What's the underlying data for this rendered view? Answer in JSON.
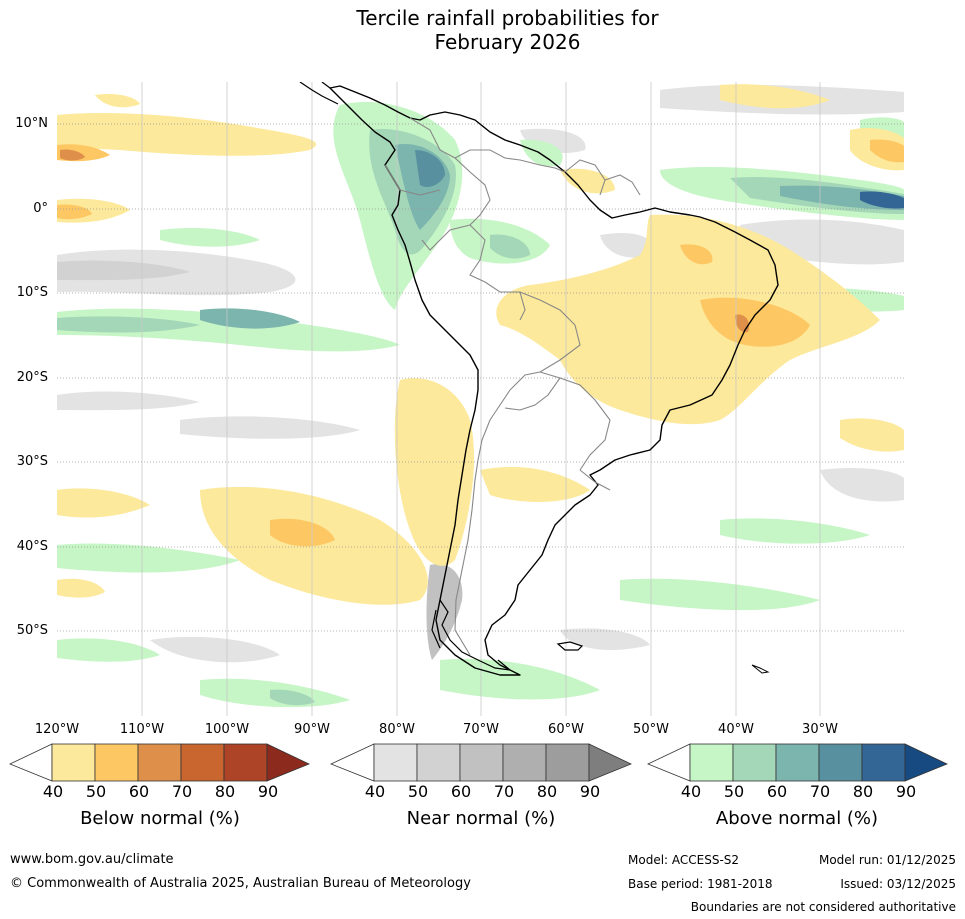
{
  "title_line1": "Tercile rainfall probabilities for",
  "title_line2": "February 2026",
  "lat_labels": [
    "10°N",
    "0°",
    "10°S",
    "20°S",
    "30°S",
    "40°S",
    "50°S"
  ],
  "lon_labels": [
    "120°W",
    "110°W",
    "100°W",
    "90°W",
    "80°W",
    "70°W",
    "60°W",
    "50°W",
    "40°W",
    "30°W"
  ],
  "colorbars": {
    "below": {
      "label": "Below normal (%)",
      "ticks": [
        "40",
        "50",
        "60",
        "70",
        "80",
        "90"
      ],
      "colors": [
        "#ffffff",
        "#fde99b",
        "#fdc864",
        "#de8f4a",
        "#c9662f",
        "#ad4428",
        "#8c2a1e"
      ]
    },
    "near": {
      "label": "Near normal (%)",
      "ticks": [
        "40",
        "50",
        "60",
        "70",
        "80",
        "90"
      ],
      "colors": [
        "#ffffff",
        "#e3e3e3",
        "#d2d2d2",
        "#c1c1c1",
        "#afafaf",
        "#9d9d9d",
        "#7e7e7e"
      ]
    },
    "above": {
      "label": "Above normal (%)",
      "ticks": [
        "40",
        "50",
        "60",
        "70",
        "80",
        "90"
      ],
      "colors": [
        "#ffffff",
        "#c6f5c6",
        "#a3d7b7",
        "#7bb5ad",
        "#5990a0",
        "#336694",
        "#174a80"
      ]
    }
  },
  "footer": {
    "website": "www.bom.gov.au/climate",
    "copyright": "© Commonwealth of Australia 2025, Australian Bureau of Meteorology",
    "model": "Model: ACCESS-S2",
    "model_run": "Model run: 01/12/2025",
    "base_period": "Base period: 1981-2018",
    "issued": "Issued: 03/12/2025",
    "boundaries": "Boundaries are not considered authoritative"
  }
}
